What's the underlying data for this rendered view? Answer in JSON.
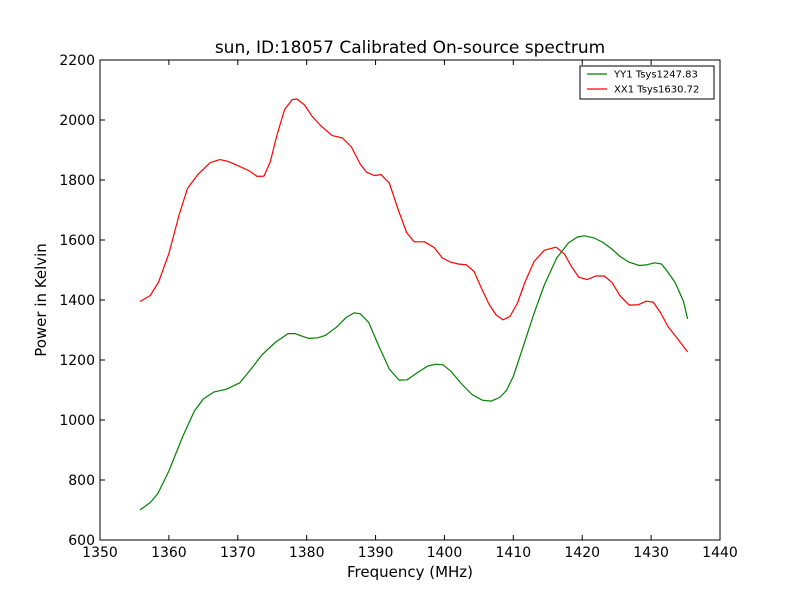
{
  "chart_data": {
    "type": "line",
    "title": "sun, ID:18057 Calibrated On-source spectrum",
    "xlabel": "Frequency (MHz)",
    "ylabel": "Power in Kelvin",
    "xlim": [
      1350,
      1440
    ],
    "ylim": [
      600,
      2200
    ],
    "xticks": [
      1350,
      1360,
      1370,
      1380,
      1390,
      1400,
      1410,
      1420,
      1430,
      1440
    ],
    "yticks": [
      600,
      800,
      1000,
      1200,
      1400,
      1600,
      1800,
      2000,
      2200
    ],
    "grid": false,
    "legend_position": "top-right",
    "series": [
      {
        "name": "YY1 Tsys1247.83",
        "color": "#008000",
        "x": [
          1355.8,
          1357.3,
          1358.4,
          1360.0,
          1362.0,
          1363.7,
          1365.0,
          1366.5,
          1368.4,
          1370.3,
          1372.0,
          1373.5,
          1375.5,
          1377.3,
          1378.3,
          1379.5,
          1380.3,
          1381.6,
          1382.7,
          1384.3,
          1385.8,
          1386.9,
          1387.8,
          1389.0,
          1390.5,
          1392.0,
          1393.4,
          1394.6,
          1396.2,
          1397.6,
          1398.7,
          1399.8,
          1401.0,
          1402.5,
          1404.0,
          1405.5,
          1406.8,
          1408.0,
          1409.0,
          1410.0,
          1411.5,
          1413.0,
          1414.5,
          1416.3,
          1418.0,
          1419.3,
          1420.3,
          1421.7,
          1423.0,
          1424.3,
          1425.5,
          1426.8,
          1428.3,
          1429.3,
          1430.5,
          1431.5,
          1432.2,
          1433.5,
          1434.7,
          1435.3
        ],
        "values": [
          700,
          725,
          755,
          830,
          945,
          1030,
          1070,
          1093,
          1103,
          1124,
          1172,
          1217,
          1260,
          1288,
          1288,
          1278,
          1272,
          1274,
          1282,
          1309,
          1343,
          1357,
          1354,
          1325,
          1245,
          1170,
          1133,
          1134,
          1160,
          1180,
          1186,
          1184,
          1161,
          1120,
          1085,
          1066,
          1063,
          1075,
          1098,
          1145,
          1250,
          1355,
          1450,
          1540,
          1590,
          1610,
          1614,
          1607,
          1592,
          1570,
          1545,
          1526,
          1515,
          1517,
          1524,
          1520,
          1500,
          1458,
          1395,
          1337
        ]
      },
      {
        "name": "XX1 Tsys1630.72",
        "color": "#ff0000",
        "x": [
          1355.8,
          1357.3,
          1358.5,
          1360.0,
          1361.5,
          1362.7,
          1364.2,
          1366.0,
          1367.4,
          1368.6,
          1370.0,
          1371.7,
          1372.8,
          1373.8,
          1374.7,
          1375.7,
          1376.8,
          1377.9,
          1378.6,
          1379.7,
          1380.8,
          1382.0,
          1383.7,
          1385.2,
          1386.5,
          1387.8,
          1388.7,
          1389.8,
          1390.8,
          1392.0,
          1393.3,
          1394.5,
          1395.6,
          1397.1,
          1398.5,
          1399.7,
          1400.8,
          1402.0,
          1403.2,
          1404.3,
          1405.5,
          1406.5,
          1407.5,
          1408.5,
          1409.5,
          1410.6,
          1411.7,
          1413.0,
          1414.5,
          1416.2,
          1417.4,
          1418.4,
          1419.5,
          1420.7,
          1422.0,
          1423.2,
          1424.3,
          1425.5,
          1426.8,
          1428.1,
          1429.3,
          1430.3,
          1431.3,
          1432.5,
          1433.7,
          1435.3
        ],
        "values": [
          1395,
          1415,
          1460,
          1555,
          1685,
          1772,
          1818,
          1858,
          1868,
          1862,
          1848,
          1830,
          1812,
          1813,
          1860,
          1950,
          2035,
          2068,
          2070,
          2050,
          2012,
          1982,
          1948,
          1940,
          1910,
          1852,
          1826,
          1815,
          1818,
          1790,
          1700,
          1625,
          1594,
          1594,
          1575,
          1540,
          1527,
          1520,
          1517,
          1495,
          1433,
          1385,
          1350,
          1334,
          1345,
          1390,
          1460,
          1528,
          1566,
          1576,
          1554,
          1513,
          1476,
          1468,
          1480,
          1480,
          1459,
          1414,
          1383,
          1384,
          1396,
          1393,
          1360,
          1310,
          1275,
          1227
        ]
      }
    ]
  }
}
